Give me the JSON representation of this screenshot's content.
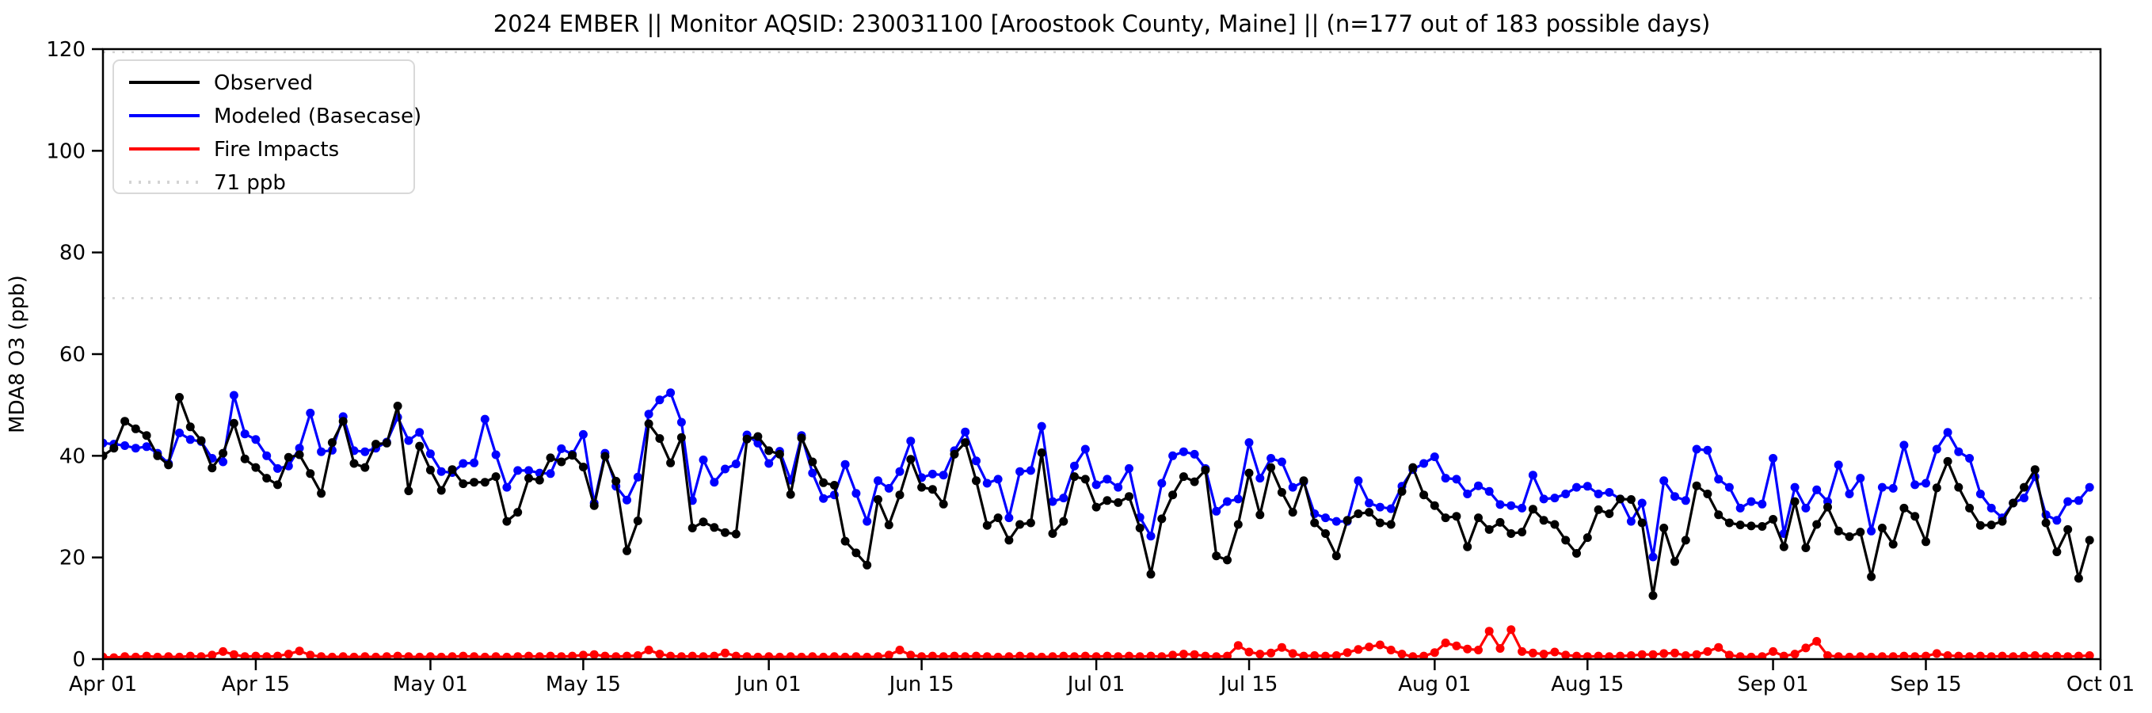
{
  "chart_data": {
    "type": "line",
    "title": "2024 EMBER || Monitor AQSID: 230031100 [Aroostook County, Maine] || (n=177 out of 183 possible days)",
    "xlabel": "",
    "ylabel": "MDA8 O3 (ppb)",
    "ylim": [
      0,
      120
    ],
    "yticks": [
      0,
      20,
      40,
      60,
      80,
      100,
      120
    ],
    "x_range_days": 183,
    "x_start": "Apr 01",
    "x_end": "Oct 01",
    "grid": false,
    "legend_position": "upper left",
    "xticks": [
      {
        "label": "Apr 01",
        "day": 0
      },
      {
        "label": "Apr 15",
        "day": 14
      },
      {
        "label": "May 01",
        "day": 30
      },
      {
        "label": "May 15",
        "day": 44
      },
      {
        "label": "Jun 01",
        "day": 61
      },
      {
        "label": "Jun 15",
        "day": 75
      },
      {
        "label": "Jul 01",
        "day": 91
      },
      {
        "label": "Jul 15",
        "day": 105
      },
      {
        "label": "Aug 01",
        "day": 122
      },
      {
        "label": "Aug 15",
        "day": 136
      },
      {
        "label": "Sep 01",
        "day": 153
      },
      {
        "label": "Sep 15",
        "day": 167
      },
      {
        "label": "Oct 01",
        "day": 183
      }
    ],
    "reference_lines": [
      {
        "value": 71,
        "label": "71 ppb",
        "color": "#d3d3d3",
        "style": "dotted"
      },
      {
        "value": 119.4,
        "label": "",
        "color": "#d3d3d3",
        "style": "dotted"
      }
    ],
    "legend": [
      {
        "label": "Observed",
        "color": "#000000",
        "style": "solid"
      },
      {
        "label": "Modeled (Basecase)",
        "color": "#0000ff",
        "style": "solid"
      },
      {
        "label": "Fire Impacts",
        "color": "#ff0000",
        "style": "solid"
      },
      {
        "label": "71 ppb",
        "color": "#d3d3d3",
        "style": "dotted"
      }
    ],
    "series": [
      {
        "name": "Observed",
        "color": "#000000",
        "marker": "circle",
        "values": [
          40,
          41.5,
          46.8,
          45.3,
          44,
          40,
          38.2,
          51.5,
          45.7,
          43,
          37.6,
          40.5,
          46.4,
          39.4,
          37.7,
          35.6,
          34.3,
          39.7,
          40.2,
          36.5,
          32.6,
          42.6,
          46.8,
          38.5,
          37.7,
          42.3,
          42.5,
          49.8,
          33.1,
          41.9,
          37.2,
          33.2,
          37.3,
          34.5,
          34.8,
          34.8,
          35.9,
          27.1,
          28.9,
          35.6,
          35.2,
          39.6,
          38.8,
          40.1,
          37.8,
          30.2,
          39.9,
          35,
          21.3,
          27.2,
          46.3,
          43.4,
          38.6,
          43.6,
          25.8,
          27,
          25.9,
          24.9,
          24.6,
          43.3,
          43.8,
          41,
          40.3,
          32.4,
          43.5,
          38.8,
          34.7,
          34.2,
          23.2,
          20.9,
          18.5,
          31.4,
          26.4,
          32.3,
          39.3,
          33.8,
          33.4,
          30.5,
          40.3,
          42.6,
          35.1,
          26.3,
          27.8,
          23.4,
          26.5,
          26.8,
          40.6,
          24.7,
          27.1,
          35.9,
          35.4,
          29.9,
          31.2,
          30.8,
          32,
          25.8,
          16.7,
          27.6,
          32.3,
          35.9,
          34.9,
          37.2,
          20.3,
          19.5,
          26.5,
          36.6,
          28.4,
          37.7,
          32.8,
          28.9,
          35.1,
          26.8,
          24.7,
          20.3,
          27.3,
          28.6,
          28.9,
          26.8,
          26.5,
          33,
          37.7,
          32.3,
          30.2,
          27.8,
          28.1,
          22.1,
          27.8,
          25.5,
          26.9,
          24.7,
          25,
          29.5,
          27.3,
          26.5,
          23.4,
          20.8,
          23.9,
          29.4,
          28.6,
          31.5,
          31.4,
          26.8,
          12.5,
          25.8,
          19.2,
          23.4,
          34.1,
          32.5,
          28.4,
          26.8,
          26.4,
          26.2,
          26.1,
          27.5,
          22.1,
          31,
          21.9,
          26.5,
          29.9,
          25.2,
          24.1,
          25,
          16.2,
          25.8,
          22.6,
          29.7,
          28.1,
          23.1,
          33.7,
          38.9,
          33.8,
          29.7,
          26.3,
          26.4,
          27.1,
          30.7,
          33.8,
          37.3,
          26.8,
          21.1,
          25.5,
          15.9,
          23.4
        ]
      },
      {
        "name": "Modeled (Basecase)",
        "color": "#0000ff",
        "marker": "circle",
        "values": [
          42.5,
          42.3,
          42,
          41.5,
          41.8,
          40.5,
          38.5,
          44.5,
          43.2,
          42.8,
          39.5,
          38.8,
          51.9,
          44.3,
          43.2,
          40,
          37.5,
          38,
          41.5,
          48.4,
          40.8,
          41.1,
          47.7,
          41,
          40.8,
          41.5,
          42.7,
          47.6,
          43,
          44.6,
          40.4,
          36.9,
          36.7,
          38.5,
          38.6,
          47.2,
          40.2,
          33.8,
          37.1,
          37.1,
          36.6,
          36.5,
          41.4,
          40.3,
          44.2,
          30.7,
          40.5,
          34,
          31.3,
          35.8,
          48.2,
          51,
          52.4,
          46.6,
          31.2,
          39.2,
          34.8,
          37.4,
          38.4,
          44.1,
          42.5,
          38.5,
          40.9,
          35.2,
          44,
          36.6,
          31.6,
          32.3,
          38.3,
          32.6,
          27.1,
          35.1,
          33.6,
          36.9,
          42.9,
          35.7,
          36.4,
          36.2,
          41,
          44.7,
          39,
          34.6,
          35.4,
          27.8,
          36.9,
          37.1,
          45.8,
          31,
          31.7,
          38,
          41.3,
          34.3,
          35.4,
          33.8,
          37.5,
          27.9,
          24.2,
          34.6,
          40,
          40.8,
          40.3,
          37.5,
          29.1,
          31,
          31.5,
          42.6,
          35.6,
          39.5,
          38.8,
          33.8,
          34.9,
          28.6,
          27.8,
          27.1,
          27.1,
          35.1,
          30.7,
          29.9,
          29.6,
          34,
          37.3,
          38.5,
          39.8,
          35.6,
          35.4,
          32.5,
          34.1,
          33,
          30.4,
          30.2,
          29.7,
          36.2,
          31.5,
          31.7,
          32.5,
          33.8,
          34,
          32.5,
          32.8,
          31.5,
          27.1,
          30.7,
          20.1,
          35.1,
          32,
          31.2,
          41.3,
          41.1,
          35.4,
          33.8,
          29.7,
          31,
          30.5,
          39.5,
          24.7,
          33.8,
          29.7,
          33.3,
          31,
          38.2,
          32.5,
          35.6,
          25.2,
          33.8,
          33.6,
          42.1,
          34.3,
          34.6,
          41.3,
          44.6,
          40.8,
          39.5,
          32.5,
          29.7,
          27.8,
          30.7,
          31.7,
          35.9,
          28.4,
          27.3,
          31,
          31.2,
          33.8
        ]
      },
      {
        "name": "Fire Impacts",
        "color": "#ff0000",
        "marker": "circle",
        "values": [
          0.4,
          0.3,
          0.5,
          0.4,
          0.6,
          0.4,
          0.5,
          0.4,
          0.6,
          0.5,
          0.8,
          1.5,
          0.9,
          0.5,
          0.6,
          0.5,
          0.6,
          1,
          1.6,
          0.8,
          0.5,
          0.4,
          0.5,
          0.4,
          0.5,
          0.4,
          0.5,
          0.6,
          0.5,
          0.4,
          0.5,
          0.4,
          0.5,
          0.6,
          0.5,
          0.4,
          0.5,
          0.4,
          0.5,
          0.6,
          0.5,
          0.6,
          0.5,
          0.6,
          0.8,
          0.9,
          0.6,
          0.5,
          0.6,
          0.7,
          1.8,
          1,
          0.6,
          0.5,
          0.6,
          0.5,
          0.6,
          1.2,
          0.6,
          0.5,
          0.4,
          0.5,
          0.4,
          0.5,
          0.4,
          0.5,
          0.4,
          0.5,
          0.4,
          0.5,
          0.4,
          0.5,
          0.8,
          1.8,
          0.8,
          0.5,
          0.6,
          0.5,
          0.6,
          0.5,
          0.6,
          0.5,
          0.4,
          0.5,
          0.6,
          0.5,
          0.4,
          0.5,
          0.6,
          0.5,
          0.6,
          0.5,
          0.6,
          0.5,
          0.6,
          0.5,
          0.6,
          0.5,
          0.8,
          1,
          0.9,
          0.6,
          0.5,
          0.6,
          2.7,
          1.4,
          1,
          1.2,
          2.3,
          1.1,
          0.6,
          0.7,
          0.6,
          0.7,
          1.3,
          1.9,
          2.4,
          2.8,
          1.8,
          1,
          0.5,
          0.6,
          1.3,
          3.2,
          2.6,
          2,
          1.8,
          5.5,
          2.1,
          5.8,
          1.5,
          1.2,
          1,
          1.4,
          0.8,
          0.6,
          0.5,
          0.6,
          0.5,
          0.6,
          0.7,
          0.9,
          0.9,
          1.1,
          1.2,
          0.7,
          0.9,
          1.5,
          2.3,
          0.8,
          0.5,
          0.4,
          0.5,
          1.5,
          0.6,
          1,
          2.2,
          3.5,
          0.7,
          0.5,
          0.4,
          0.5,
          0.4,
          0.5,
          0.5,
          0.6,
          0.5,
          0.6,
          1.1,
          0.7,
          0.6,
          0.5,
          0.6,
          0.5,
          0.6,
          0.5,
          0.6,
          0.7,
          0.5,
          0.6,
          0.5,
          0.6,
          0.7
        ]
      }
    ]
  }
}
